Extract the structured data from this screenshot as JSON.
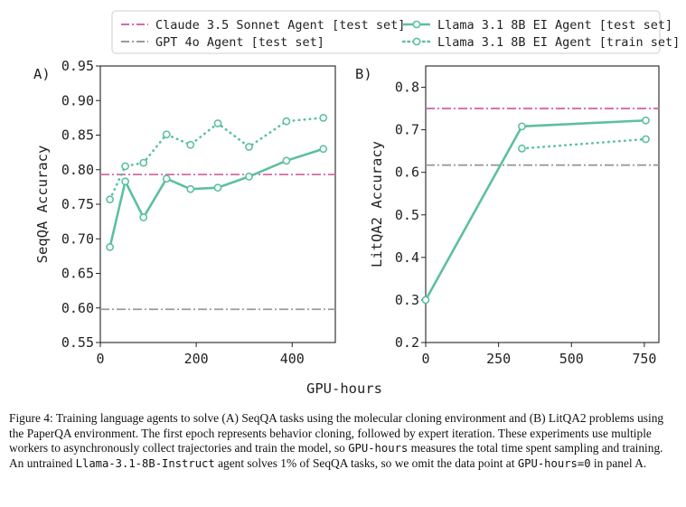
{
  "colors": {
    "claude": "#d46aa6",
    "gpt": "#9a9a9a",
    "llama": "#5cc0a0",
    "axis": "#222222"
  },
  "legend": {
    "claude": "Claude 3.5 Sonnet Agent [test set]",
    "gpt": "GPT 4o Agent [test set]",
    "llama_test": "Llama 3.1 8B EI Agent [test set]",
    "llama_train": "Llama 3.1 8B EI Agent [train set]"
  },
  "shared_xlabel": "GPU-hours",
  "chart_data": [
    {
      "type": "line",
      "panel_label": "A)",
      "xlabel": "GPU-hours",
      "ylabel": "SeqQA Accuracy",
      "xlim": [
        0,
        490
      ],
      "ylim": [
        0.55,
        0.95
      ],
      "xticks": [
        0,
        200,
        400
      ],
      "xtick_labels": [
        "0",
        "200",
        "400"
      ],
      "yticks": [
        0.55,
        0.6,
        0.65,
        0.7,
        0.75,
        0.8,
        0.85,
        0.9,
        0.95
      ],
      "ytick_labels": [
        "0.55",
        "0.60",
        "0.65",
        "0.70",
        "0.75",
        "0.80",
        "0.85",
        "0.90",
        "0.95"
      ],
      "hlines": [
        {
          "name": "Claude 3.5 Sonnet Agent [test set]",
          "y": 0.793,
          "style": "dashdot",
          "color_key": "claude"
        },
        {
          "name": "GPT 4o Agent [test set]",
          "y": 0.598,
          "style": "dashdot",
          "color_key": "gpt"
        }
      ],
      "series": [
        {
          "name": "Llama 3.1 8B EI Agent [test set]",
          "style": "solid",
          "x": [
            20,
            52,
            90,
            138,
            188,
            245,
            310,
            388,
            465
          ],
          "y": [
            0.688,
            0.783,
            0.731,
            0.787,
            0.772,
            0.774,
            0.79,
            0.813,
            0.83
          ]
        },
        {
          "name": "Llama 3.1 8B EI Agent [train set]",
          "style": "dotted",
          "x": [
            20,
            52,
            90,
            138,
            188,
            245,
            310,
            388,
            465
          ],
          "y": [
            0.757,
            0.805,
            0.81,
            0.851,
            0.836,
            0.867,
            0.833,
            0.87,
            0.875
          ]
        }
      ]
    },
    {
      "type": "line",
      "panel_label": "B)",
      "xlabel": "GPU-hours",
      "ylabel": "LitQA2 Accuracy",
      "xlim": [
        0,
        800
      ],
      "ylim": [
        0.2,
        0.85
      ],
      "xticks": [
        0,
        250,
        500,
        750
      ],
      "xtick_labels": [
        "0",
        "250",
        "500",
        "750"
      ],
      "yticks": [
        0.2,
        0.3,
        0.4,
        0.5,
        0.6,
        0.7,
        0.8
      ],
      "ytick_labels": [
        "0.2",
        "0.3",
        "0.4",
        "0.5",
        "0.6",
        "0.7",
        "0.8"
      ],
      "hlines": [
        {
          "name": "Claude 3.5 Sonnet Agent [test set]",
          "y": 0.75,
          "style": "dashdot",
          "color_key": "claude"
        },
        {
          "name": "GPT 4o Agent [test set]",
          "y": 0.617,
          "style": "dashdot",
          "color_key": "gpt"
        }
      ],
      "series": [
        {
          "name": "Llama 3.1 8B EI Agent [test set]",
          "style": "solid",
          "x": [
            0,
            330,
            755
          ],
          "y": [
            0.3,
            0.708,
            0.722
          ]
        },
        {
          "name": "Llama 3.1 8B EI Agent [train set]",
          "style": "dotted",
          "x": [
            330,
            755
          ],
          "y": [
            0.656,
            0.678
          ]
        }
      ]
    }
  ],
  "caption": {
    "part1": "Figure 4: Training language agents to solve (A) SeqQA tasks using the molecular cloning environment and (B) LitQA2 problems using the PaperQA environment. The first epoch represents behavior cloning, followed by expert iteration. These experiments use multiple workers to asynchronously collect trajectories and train the model, so ",
    "code1": "GPU-hours",
    "part2": " measures the total time spent sampling and training. An untrained ",
    "code2": "Llama-3.1-8B-Instruct",
    "part3": " agent solves 1% of SeqQA tasks, so we omit the data point at ",
    "code3": "GPU-hours=0",
    "part4": " in panel A."
  }
}
